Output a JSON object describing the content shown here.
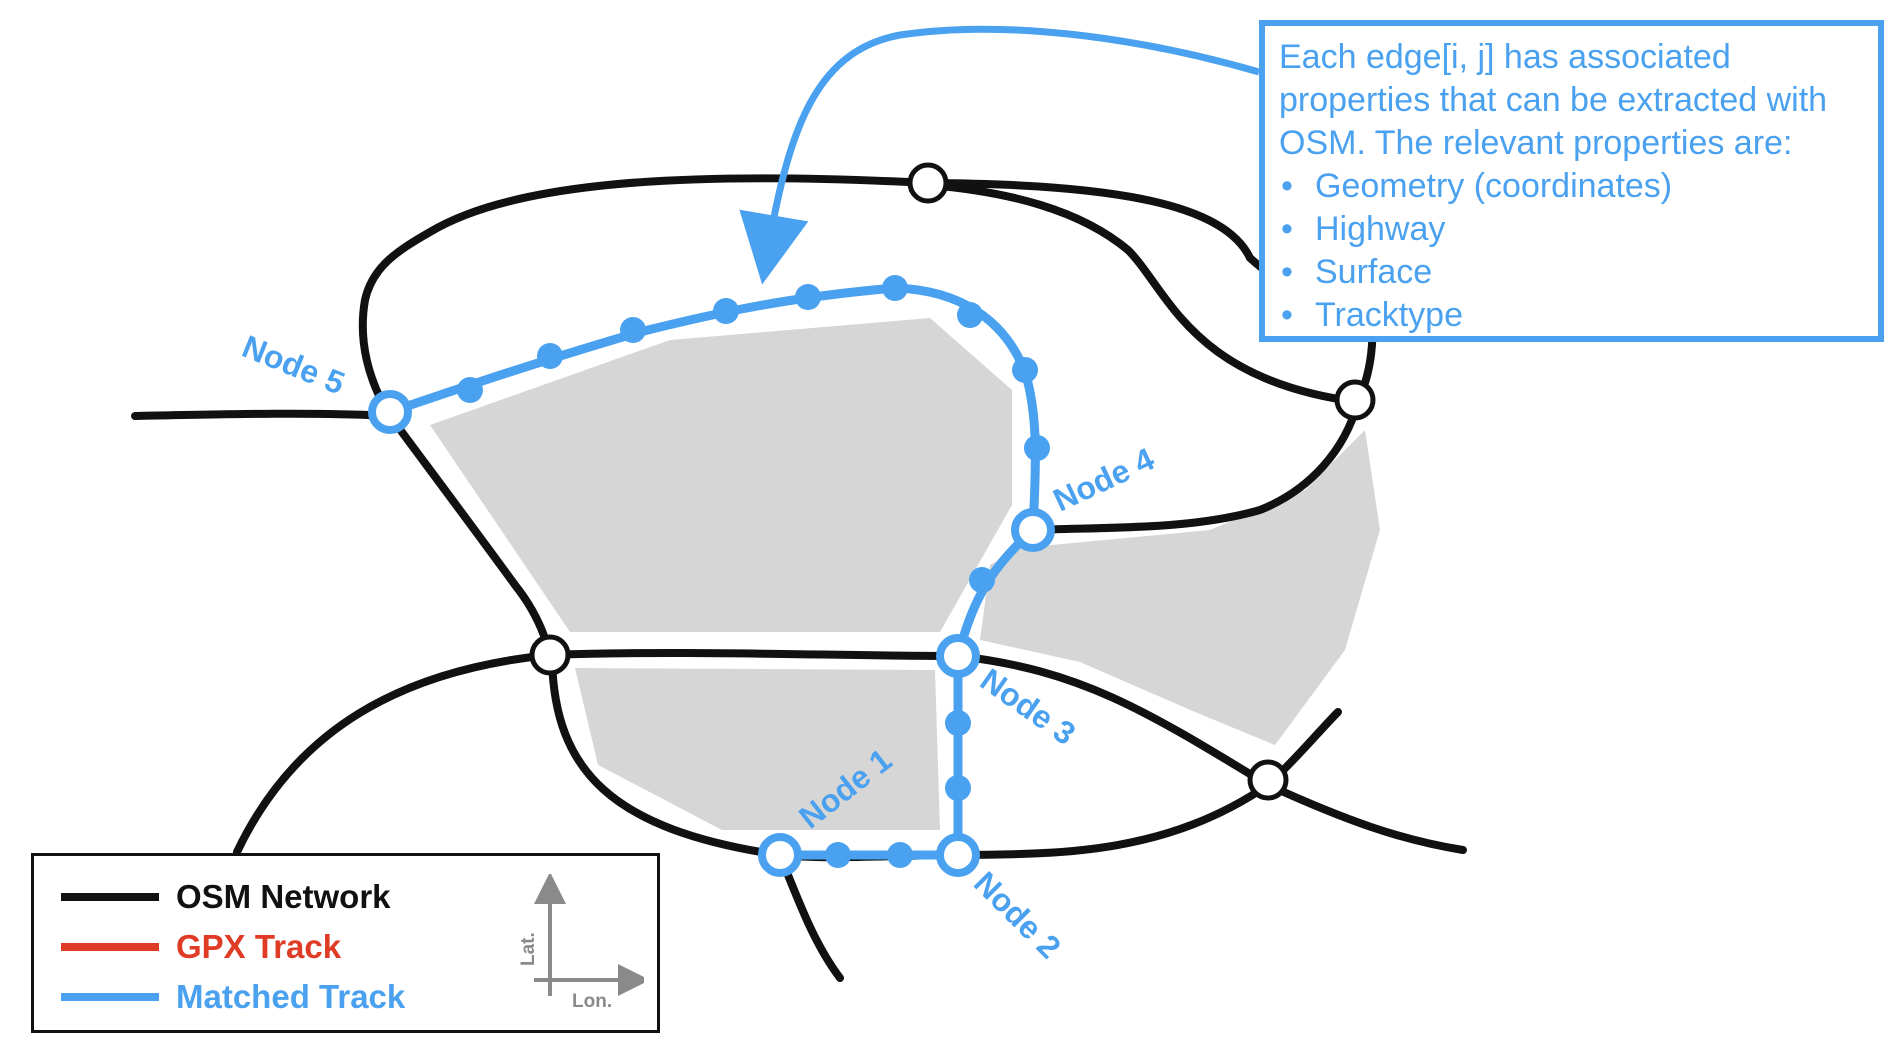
{
  "callout": {
    "text": "Each edge[i, j] has associated properties that can be extracted with OSM. The relevant properties are:",
    "items": [
      "Geometry (coordinates)",
      "Highway",
      "Surface",
      "Tracktype"
    ]
  },
  "nodes": {
    "node1": "Node 1",
    "node2": "Node 2",
    "node3": "Node 3",
    "node4": "Node 4",
    "node5": "Node 5"
  },
  "legend": {
    "osm": "OSM Network",
    "gpx": "GPX Track",
    "matched": "Matched Track",
    "axis_y": "Lat.",
    "axis_x": "Lon."
  },
  "colors": {
    "osm": "#111111",
    "gpx": "#e03b24",
    "matched": "#4aa1ef",
    "block": "#d6d6d6",
    "axis": "#8a8a8a"
  }
}
